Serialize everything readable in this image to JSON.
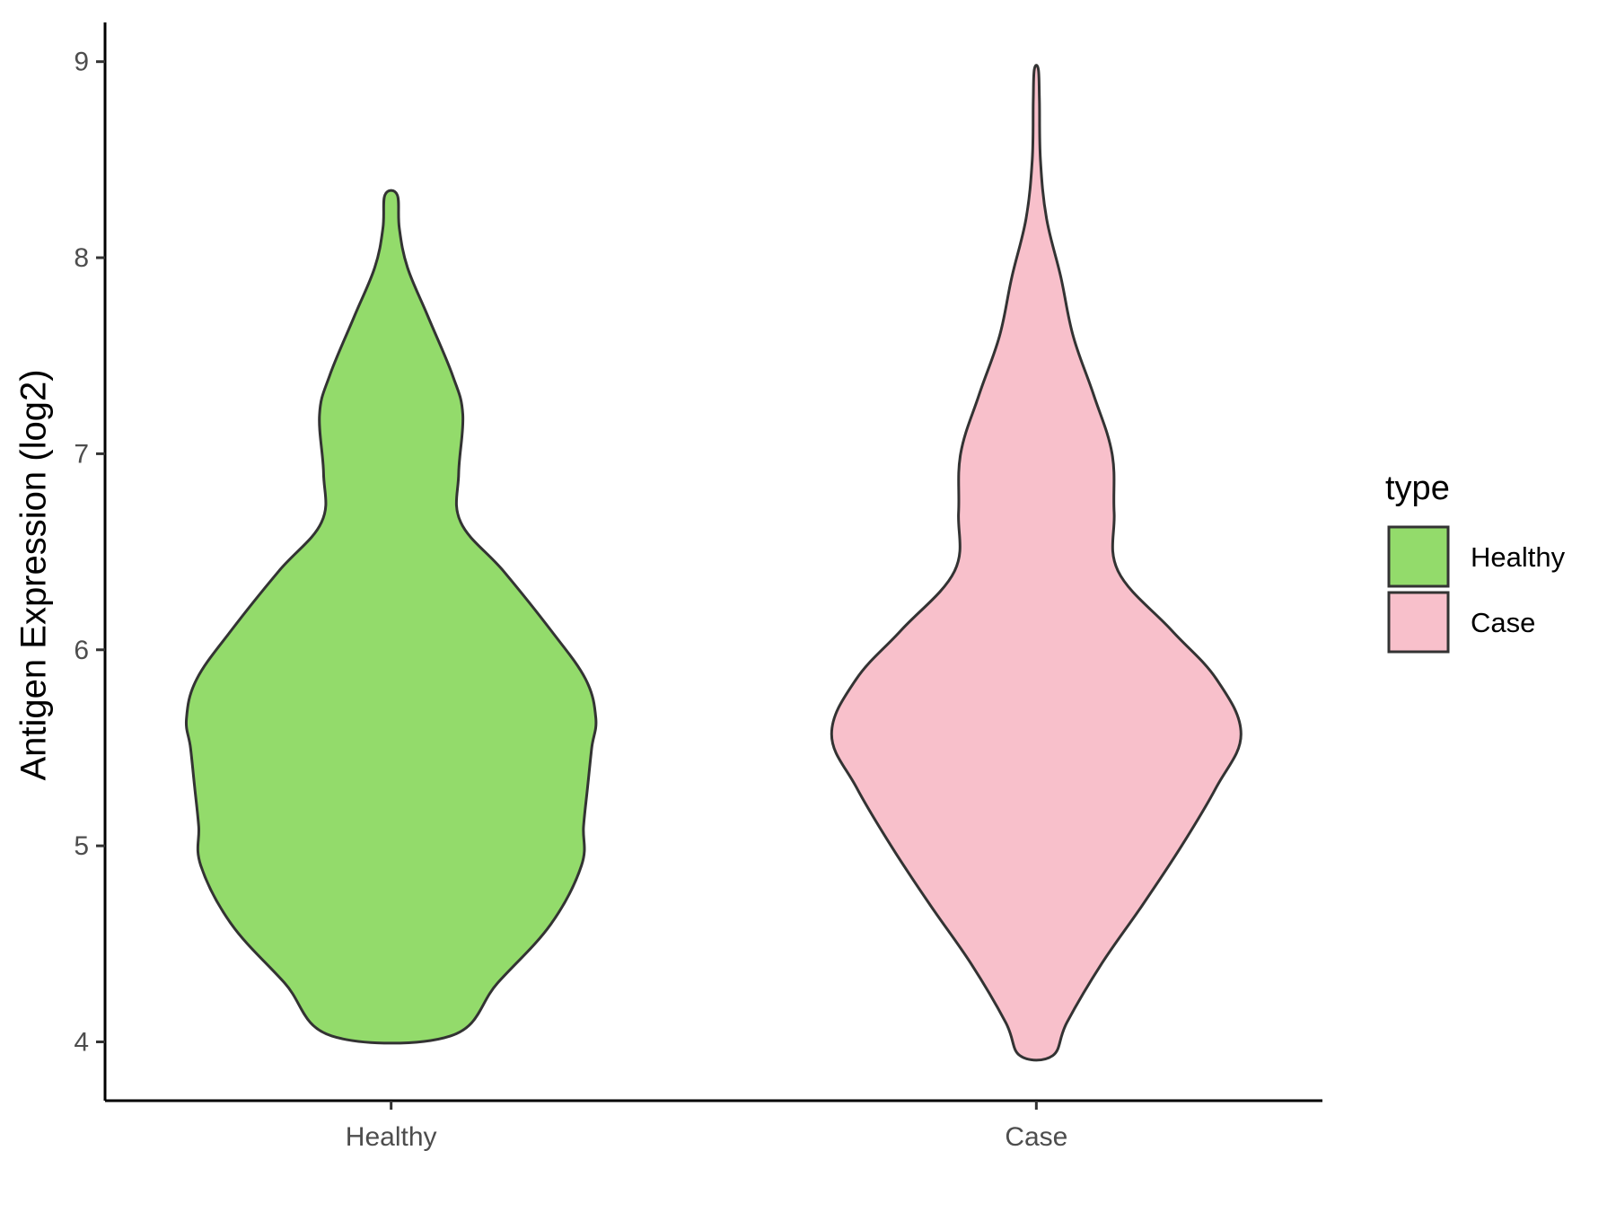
{
  "chart_data": {
    "type": "violin",
    "xlabel": "",
    "ylabel": "Antigen Expression (log2)",
    "ylim": [
      3.7,
      9.2
    ],
    "yticks": [
      "4",
      "5",
      "6",
      "7",
      "8",
      "9"
    ],
    "grid": false,
    "legend": {
      "title": "type",
      "placement": "right"
    },
    "categories": [
      "Healthy",
      "Case"
    ],
    "series": [
      {
        "name": "Healthy",
        "color": "#93DB6B",
        "y_min": 4.03,
        "y_max": 8.32,
        "density_profile": [
          [
            4.03,
            0.29
          ],
          [
            4.3,
            0.52
          ],
          [
            4.6,
            0.78
          ],
          [
            4.9,
            0.93
          ],
          [
            5.1,
            0.94
          ],
          [
            5.3,
            0.96
          ],
          [
            5.5,
            0.98
          ],
          [
            5.65,
            1.0
          ],
          [
            5.85,
            0.95
          ],
          [
            6.1,
            0.78
          ],
          [
            6.4,
            0.55
          ],
          [
            6.65,
            0.34
          ],
          [
            6.9,
            0.33
          ],
          [
            7.2,
            0.35
          ],
          [
            7.4,
            0.3
          ],
          [
            7.7,
            0.18
          ],
          [
            7.95,
            0.08
          ],
          [
            8.15,
            0.04
          ],
          [
            8.32,
            0.03
          ]
        ]
      },
      {
        "name": "Case",
        "color": "#F8C0CB",
        "y_min": 3.93,
        "y_max": 8.96,
        "density_profile": [
          [
            3.93,
            0.08
          ],
          [
            4.1,
            0.15
          ],
          [
            4.4,
            0.32
          ],
          [
            4.7,
            0.52
          ],
          [
            5.0,
            0.71
          ],
          [
            5.3,
            0.88
          ],
          [
            5.57,
            1.0
          ],
          [
            5.85,
            0.88
          ],
          [
            6.1,
            0.66
          ],
          [
            6.4,
            0.4
          ],
          [
            6.7,
            0.38
          ],
          [
            7.0,
            0.37
          ],
          [
            7.3,
            0.28
          ],
          [
            7.6,
            0.18
          ],
          [
            7.9,
            0.12
          ],
          [
            8.2,
            0.05
          ],
          [
            8.5,
            0.02
          ],
          [
            8.8,
            0.015
          ],
          [
            8.96,
            0.01
          ]
        ]
      }
    ]
  }
}
